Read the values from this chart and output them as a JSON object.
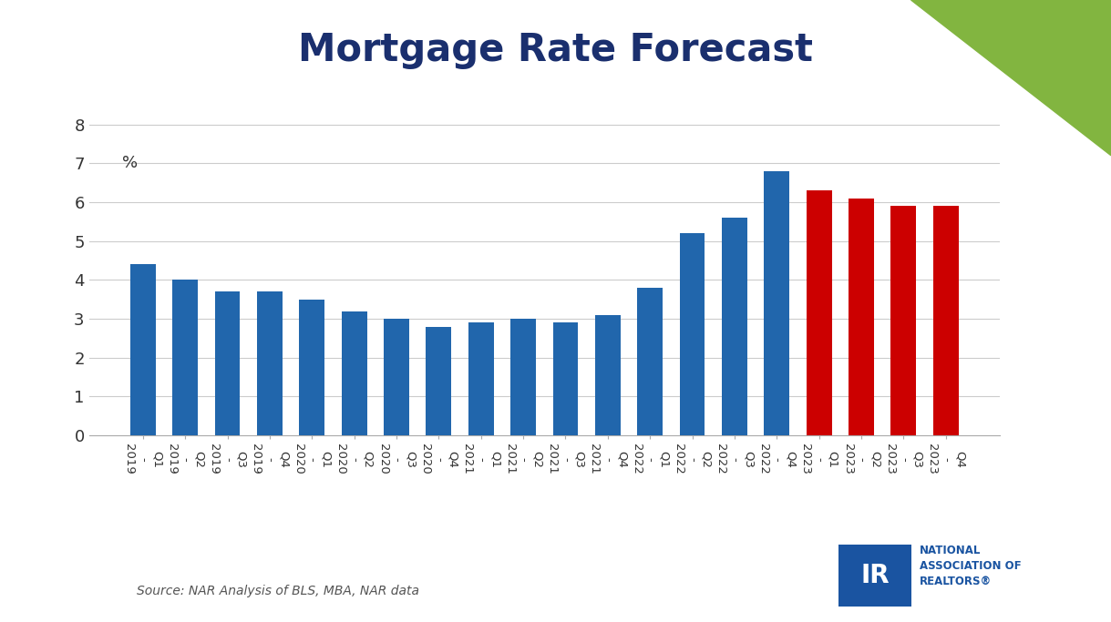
{
  "categories": [
    "2019 - Q1",
    "2019 - Q2",
    "2019 - Q3",
    "2019 - Q4",
    "2020 - Q1",
    "2020 - Q2",
    "2020 - Q3",
    "2020 - Q4",
    "2021 - Q1",
    "2021 - Q2",
    "2021 - Q3",
    "2021 - Q4",
    "2022 - Q1",
    "2022 - Q2",
    "2022 - Q3",
    "2022 - Q4",
    "2023 - Q1",
    "2023 - Q2",
    "2023 - Q3",
    "2023 - Q4"
  ],
  "values": [
    4.4,
    4.0,
    3.7,
    3.7,
    3.5,
    3.2,
    3.0,
    2.8,
    2.9,
    3.0,
    2.9,
    3.1,
    3.8,
    5.2,
    5.6,
    6.8,
    6.3,
    6.1,
    5.9,
    5.9
  ],
  "colors": [
    "#2166ac",
    "#2166ac",
    "#2166ac",
    "#2166ac",
    "#2166ac",
    "#2166ac",
    "#2166ac",
    "#2166ac",
    "#2166ac",
    "#2166ac",
    "#2166ac",
    "#2166ac",
    "#2166ac",
    "#2166ac",
    "#2166ac",
    "#2166ac",
    "#cc0000",
    "#cc0000",
    "#cc0000",
    "#cc0000"
  ],
  "title": "Mortgage Rate Forecast",
  "title_color": "#1a2f6e",
  "title_fontsize": 30,
  "ylabel_text": "%",
  "ylim": [
    0,
    8.8
  ],
  "yticks": [
    0,
    1,
    2,
    3,
    4,
    5,
    6,
    7,
    8
  ],
  "background_color": "#ffffff",
  "source_text": "Source: NAR Analysis of BLS, MBA, NAR data",
  "bar_width": 0.6,
  "green_triangle_color": "#82b540",
  "figure_width": 12.19,
  "figure_height": 6.83,
  "nar_blue": "#1a54a1",
  "nar_text": "NATIONAL\nASSOCIATION OF\nREALTORS®"
}
